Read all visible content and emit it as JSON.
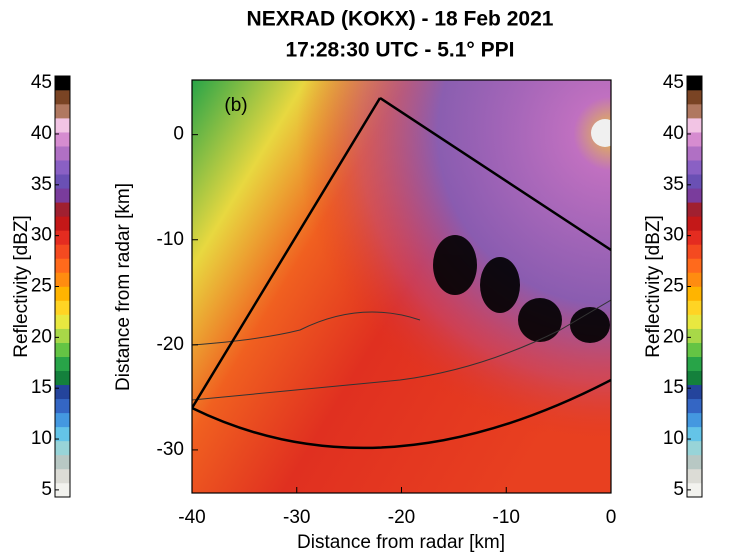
{
  "chart_data": {
    "type": "radar-ppi",
    "title": "NEXRAD (KOKX) - 18 Feb 2021",
    "subtitle": "17:28:30 UTC - 5.1° PPI",
    "panel_label": "(b)",
    "x_label": "Distance from radar [km]",
    "y_label": "Distance from radar [km]",
    "xlim": [
      -40,
      0
    ],
    "ylim": [
      -34.1,
      5.2
    ],
    "xticks": [
      -40,
      -30,
      -20,
      -10,
      0
    ],
    "yticks": [
      -30,
      -20,
      -10,
      0
    ],
    "colorbar_colors": [
      "#f2f2ee",
      "#dcdcd6",
      "#b8c8c4",
      "#98d4d8",
      "#64c4e8",
      "#4498e0",
      "#3466c4",
      "#24449c",
      "#14803c",
      "#28a448",
      "#64c444",
      "#a8d848",
      "#e8e840",
      "#ffd424",
      "#ffb400",
      "#ff8c10",
      "#ff6a1c",
      "#f44a20",
      "#e42c20",
      "#c41818",
      "#a02030",
      "#7a3c9c",
      "#6a50b4",
      "#8a60c4",
      "#b070c4",
      "#d68cd0",
      "#f2c4e4",
      "#b07860",
      "#7a4424",
      "#000000"
    ],
    "colorbars": [
      {
        "label": "Reflectivity [dBZ]",
        "lim": [
          4.3,
          45.7
        ],
        "ticks": [
          5,
          10,
          15,
          20,
          25,
          30,
          35,
          40,
          45
        ]
      },
      {
        "label": "Reflectivity [dBZ]",
        "lim": [
          4.3,
          45.7
        ],
        "ticks": [
          5,
          10,
          15,
          20,
          25,
          30,
          35,
          40,
          45
        ]
      }
    ]
  }
}
